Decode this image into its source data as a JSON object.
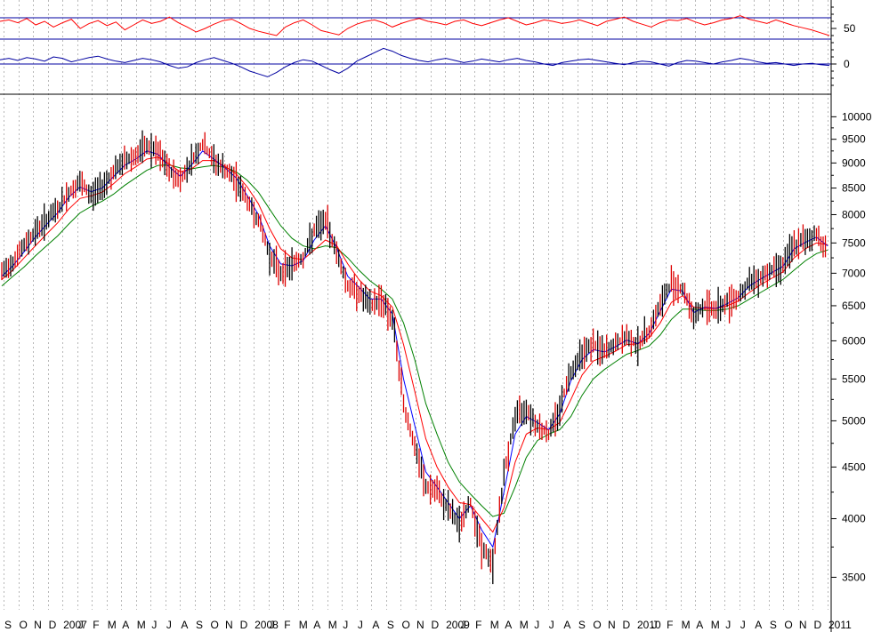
{
  "chart_data": [
    {
      "type": "line",
      "panel": "oscillator",
      "yticks": [
        50,
        0
      ],
      "reference_lines": [
        65,
        35,
        0
      ],
      "series": [
        {
          "color": "#ff0000",
          "values": [
            60,
            62,
            58,
            64,
            55,
            60,
            52,
            58,
            63,
            50,
            57,
            61,
            54,
            59,
            48,
            55,
            62,
            57,
            60,
            66,
            58,
            52,
            45,
            50,
            56,
            61,
            63,
            57,
            50,
            46,
            43,
            40,
            52,
            58,
            62,
            55,
            47,
            44,
            41,
            50,
            56,
            60,
            62,
            58,
            52,
            57,
            61,
            64,
            60,
            58,
            55,
            60,
            62,
            57,
            54,
            58,
            62,
            65,
            60,
            55,
            58,
            62,
            60,
            57,
            59,
            62,
            58,
            54,
            60,
            63,
            66,
            60,
            56,
            52,
            58,
            62,
            61,
            64,
            59,
            55,
            58,
            62,
            64,
            68,
            63,
            60,
            57,
            62,
            58,
            54,
            51,
            48,
            44,
            40
          ]
        },
        {
          "color": "#0000a0",
          "values": [
            6,
            8,
            5,
            9,
            7,
            4,
            10,
            8,
            3,
            6,
            9,
            11,
            7,
            4,
            2,
            5,
            8,
            6,
            3,
            -2,
            -6,
            -4,
            2,
            6,
            9,
            5,
            1,
            -4,
            -10,
            -14,
            -18,
            -12,
            -4,
            2,
            6,
            4,
            -2,
            -8,
            -13,
            -6,
            4,
            10,
            16,
            22,
            18,
            12,
            8,
            5,
            3,
            6,
            8,
            5,
            2,
            4,
            7,
            5,
            3,
            6,
            8,
            5,
            3,
            0,
            -2,
            2,
            4,
            6,
            7,
            5,
            3,
            1,
            -1,
            2,
            4,
            3,
            0,
            -3,
            2,
            5,
            4,
            2,
            0,
            3,
            5,
            8,
            6,
            3,
            1,
            2,
            0,
            -2,
            0,
            1,
            -1,
            -2
          ]
        }
      ]
    },
    {
      "type": "line",
      "panel": "price",
      "scale": "log",
      "ylim": [
        3250,
        10400
      ],
      "yticks": [
        10000,
        9500,
        9000,
        8500,
        8000,
        7500,
        7000,
        6500,
        6000,
        5500,
        5000,
        4500,
        4000,
        3500
      ],
      "x_month_labels": [
        "S",
        "O",
        "N",
        "D",
        "2007",
        "J",
        "F",
        "M",
        "A",
        "M",
        "J",
        "J",
        "A",
        "S",
        "O",
        "N",
        "D",
        "2008",
        "J",
        "F",
        "M",
        "A",
        "M",
        "J",
        "J",
        "A",
        "S",
        "O",
        "N",
        "D",
        "2009",
        "J",
        "F",
        "M",
        "A",
        "M",
        "J",
        "J",
        "A",
        "S",
        "O",
        "N",
        "D",
        "2010",
        "J",
        "F",
        "M",
        "A",
        "M",
        "J",
        "J",
        "A",
        "S",
        "O",
        "N",
        "D",
        "2011"
      ],
      "price_close": [
        7000,
        7200,
        7450,
        7700,
        7900,
        8100,
        8400,
        8600,
        8350,
        8550,
        8800,
        9050,
        9150,
        9350,
        9200,
        8850,
        8650,
        9050,
        9400,
        9050,
        8850,
        8650,
        8250,
        7900,
        7300,
        7000,
        7150,
        7250,
        7700,
        7900,
        7350,
        6800,
        6700,
        6500,
        6600,
        6300,
        5200,
        4700,
        4300,
        4250,
        4100,
        3950,
        4150,
        3750,
        3600,
        4400,
        5050,
        5150,
        4950,
        4850,
        5150,
        5600,
        5850,
        5950,
        5850,
        5950,
        6050,
        5950,
        6150,
        6500,
        6850,
        6750,
        6350,
        6500,
        6450,
        6550,
        6650,
        6850,
        6950,
        7050,
        7150,
        7450,
        7550,
        7650,
        7350
      ],
      "series": [
        {
          "color": "#0000ff",
          "values": [
            6950,
            7120,
            7350,
            7600,
            7820,
            8030,
            8320,
            8520,
            8430,
            8500,
            8720,
            8950,
            9080,
            9250,
            9180,
            8920,
            8730,
            8960,
            9250,
            9080,
            8900,
            8700,
            8350,
            8000,
            7450,
            7150,
            7120,
            7200,
            7550,
            7800,
            7420,
            6950,
            6780,
            6600,
            6600,
            6380,
            5500,
            4950,
            4450,
            4300,
            4150,
            4000,
            4120,
            3900,
            3750,
            4250,
            4850,
            5050,
            4980,
            4900,
            5080,
            5480,
            5750,
            5880,
            5850,
            5920,
            6010,
            5960,
            6100,
            6420,
            6750,
            6720,
            6400,
            6480,
            6460,
            6530,
            6620,
            6800,
            6910,
            7010,
            7110,
            7400,
            7510,
            7600,
            7450
          ]
        },
        {
          "color": "#ff0000",
          "values": [
            6900,
            7050,
            7250,
            7450,
            7650,
            7850,
            8100,
            8300,
            8350,
            8420,
            8580,
            8780,
            8920,
            9080,
            9120,
            8980,
            8820,
            8880,
            9050,
            9050,
            8930,
            8780,
            8520,
            8200,
            7750,
            7400,
            7250,
            7220,
            7380,
            7550,
            7460,
            7150,
            6900,
            6720,
            6650,
            6480,
            5950,
            5350,
            4800,
            4500,
            4300,
            4150,
            4130,
            4000,
            3880,
            4100,
            4550,
            4850,
            4920,
            4900,
            4980,
            5250,
            5550,
            5730,
            5790,
            5860,
            5950,
            5960,
            6040,
            6250,
            6550,
            6650,
            6480,
            6460,
            6460,
            6500,
            6570,
            6700,
            6820,
            6920,
            7020,
            7250,
            7400,
            7500,
            7470
          ]
        },
        {
          "color": "#008000",
          "values": [
            6800,
            6950,
            7100,
            7280,
            7450,
            7620,
            7830,
            8030,
            8150,
            8250,
            8380,
            8550,
            8700,
            8850,
            8950,
            8960,
            8900,
            8880,
            8920,
            8950,
            8910,
            8820,
            8650,
            8420,
            8100,
            7800,
            7580,
            7450,
            7400,
            7450,
            7420,
            7250,
            7050,
            6880,
            6750,
            6600,
            6250,
            5750,
            5200,
            4850,
            4550,
            4350,
            4230,
            4120,
            4020,
            4050,
            4300,
            4600,
            4780,
            4850,
            4900,
            5050,
            5300,
            5500,
            5620,
            5720,
            5820,
            5870,
            5930,
            6080,
            6300,
            6450,
            6450,
            6430,
            6430,
            6450,
            6500,
            6600,
            6700,
            6800,
            6900,
            7050,
            7200,
            7320,
            7380
          ]
        }
      ]
    }
  ]
}
